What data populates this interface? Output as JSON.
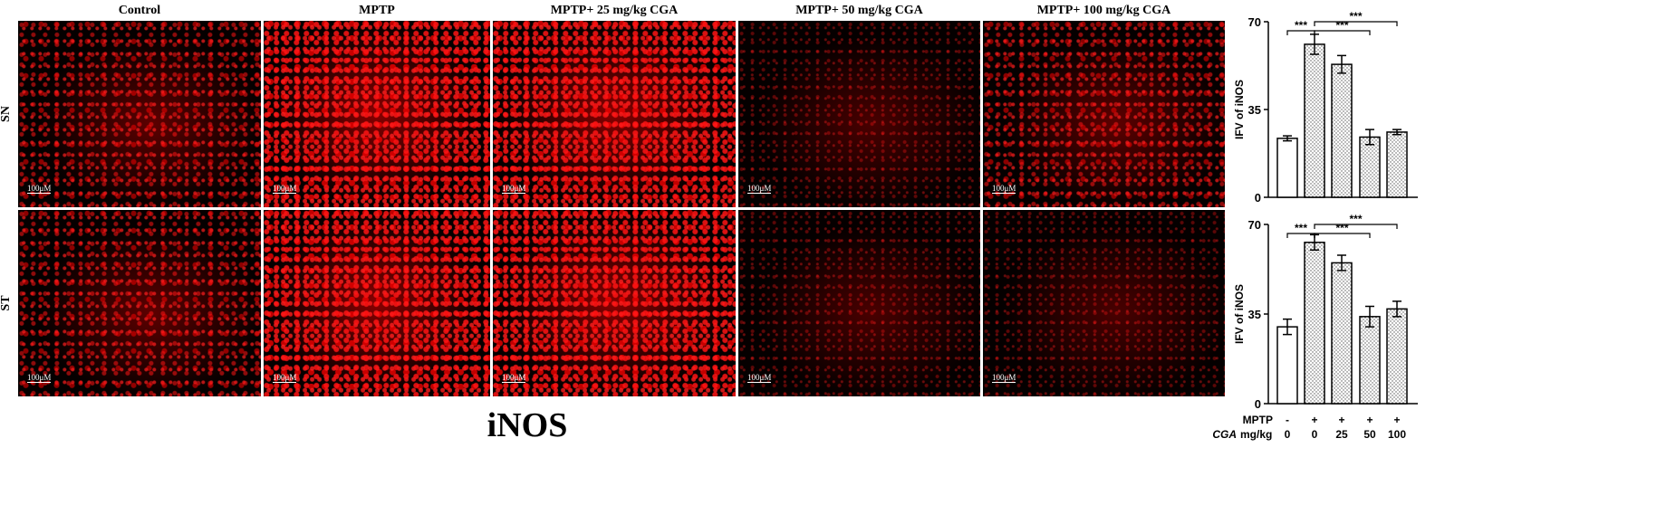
{
  "panels": {
    "columns": [
      "Control",
      "MPTP",
      "MPTP+ 25 mg/kg CGA",
      "MPTP+ 50 mg/kg CGA",
      "MPTP+ 100 mg/kg CGA"
    ],
    "rows": [
      "SN",
      "ST"
    ],
    "scale_bar": "100μM"
  },
  "figure_title": "iNOS",
  "treatments": [
    {
      "label": "MPTP",
      "values": [
        "-",
        "+",
        "+",
        "+",
        "+"
      ]
    },
    {
      "label": "CGA",
      "unit": "mg/kg",
      "values": [
        "0",
        "0",
        "25",
        "50",
        "100"
      ]
    }
  ],
  "chart_data": [
    {
      "type": "bar",
      "y_label": "IFV of iNOS",
      "values": [
        23.5,
        61,
        53,
        24,
        26
      ],
      "errors": [
        1,
        4,
        3.5,
        3,
        1
      ],
      "fill_patterns": [
        "none",
        "dots",
        "dots",
        "dots",
        "dots"
      ],
      "ylim": [
        0,
        70
      ],
      "yticks": [
        0,
        35,
        70
      ],
      "annotations": [
        "***",
        "***",
        "***"
      ]
    },
    {
      "type": "bar",
      "y_label": "IFV of iNOS",
      "values": [
        30,
        63,
        55,
        34,
        37
      ],
      "errors": [
        3,
        3,
        3,
        4,
        3
      ],
      "fill_patterns": [
        "none",
        "dots",
        "dots",
        "dots",
        "dots"
      ],
      "ylim": [
        0,
        70
      ],
      "yticks": [
        0,
        35,
        70
      ],
      "annotations": [
        "***",
        "***",
        "***"
      ]
    }
  ]
}
